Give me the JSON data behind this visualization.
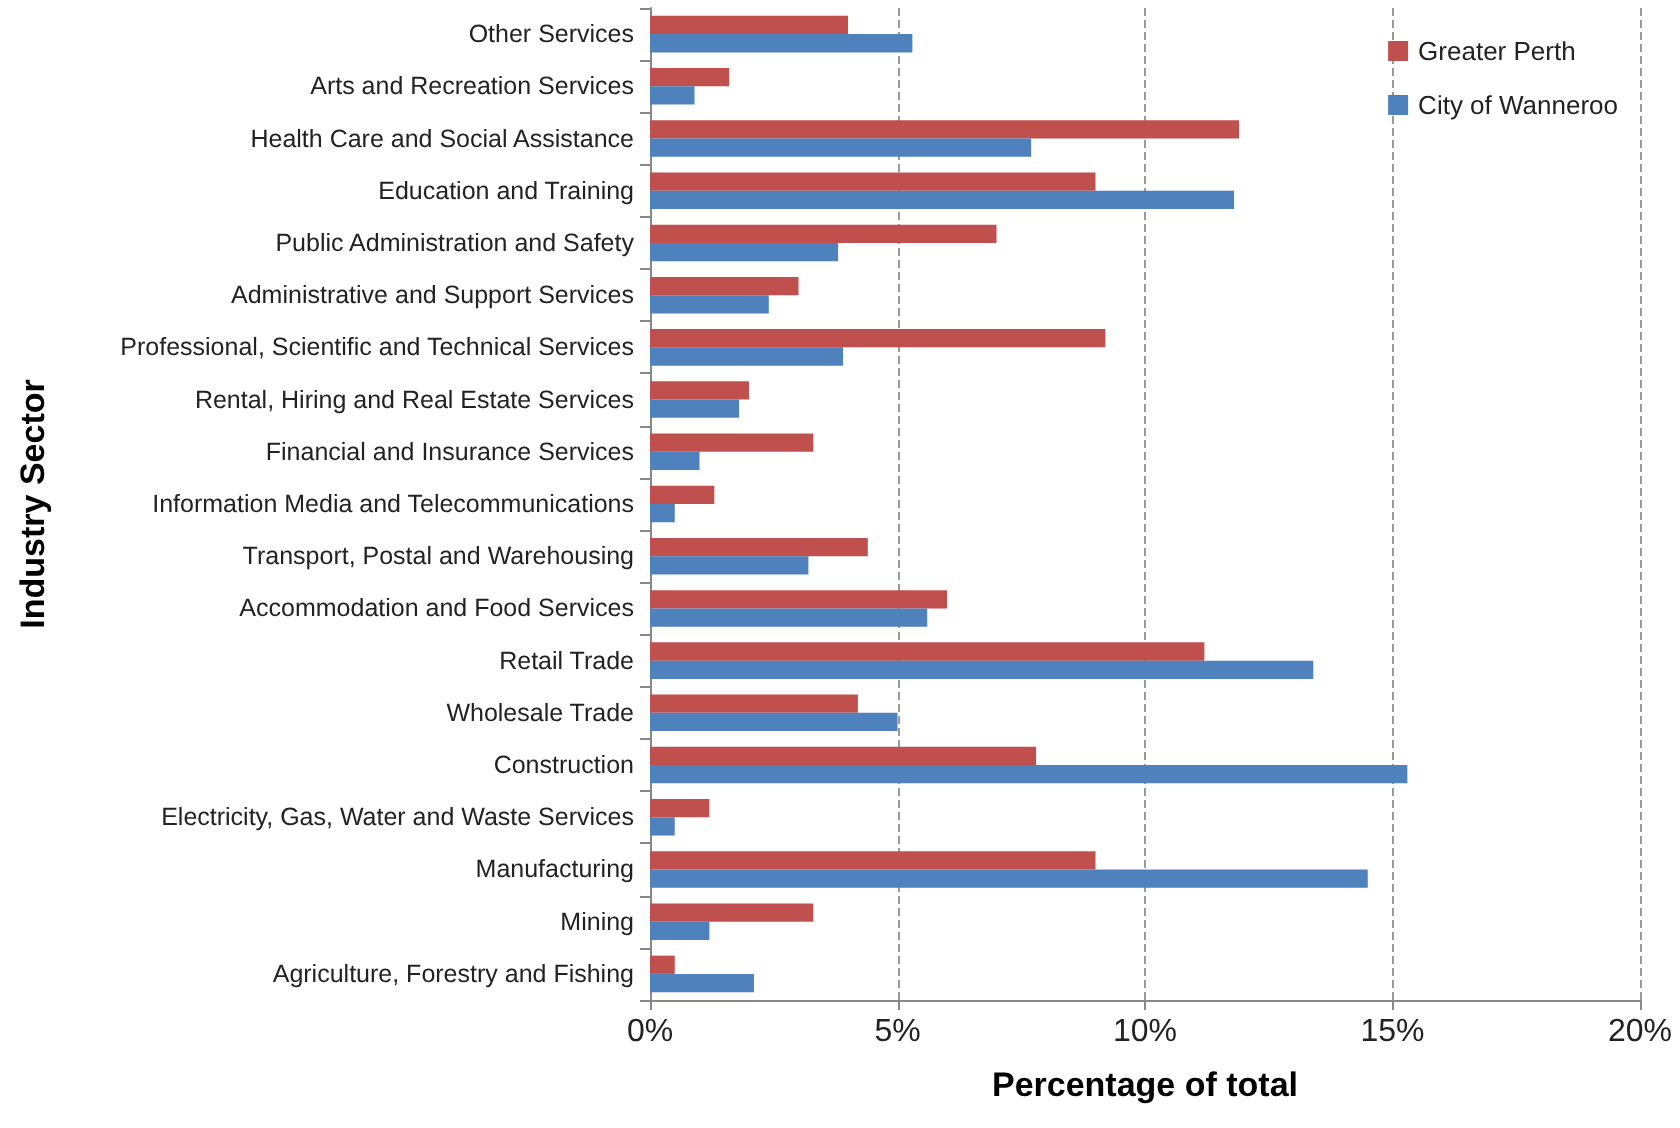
{
  "chart_data": {
    "type": "bar",
    "orientation": "horizontal",
    "xlabel": "Percentage of total",
    "ylabel": "Industry Sector",
    "categories": [
      "Other Services",
      "Arts and Recreation Services",
      "Health Care and Social Assistance",
      "Education and Training",
      "Public Administration and Safety",
      "Administrative and Support Services",
      "Professional, Scientific and Technical Services",
      "Rental, Hiring and Real Estate Services",
      "Financial and Insurance Services",
      "Information Media and Telecommunications",
      "Transport, Postal and Warehousing",
      "Accommodation and Food Services",
      "Retail Trade",
      "Wholesale Trade",
      "Construction",
      "Electricity, Gas, Water and Waste Services",
      "Manufacturing",
      "Mining",
      "Agriculture, Forestry and Fishing"
    ],
    "series": [
      {
        "name": "Greater Perth",
        "color": "#c0504d",
        "values": [
          4.0,
          1.6,
          11.9,
          9.0,
          7.0,
          3.0,
          9.2,
          2.0,
          3.3,
          1.3,
          4.4,
          6.0,
          11.2,
          4.2,
          7.8,
          1.2,
          9.0,
          3.3,
          0.5
        ]
      },
      {
        "name": "City of Wanneroo",
        "color": "#4f81bd",
        "values": [
          5.3,
          0.9,
          7.7,
          11.8,
          3.8,
          2.4,
          3.9,
          1.8,
          1.0,
          0.5,
          3.2,
          5.6,
          13.4,
          5.0,
          15.3,
          0.5,
          14.5,
          1.2,
          2.1
        ]
      }
    ],
    "xlim": [
      0,
      20
    ],
    "xticks": [
      {
        "value": 0,
        "label": "0%"
      },
      {
        "value": 5,
        "label": "5%"
      },
      {
        "value": 10,
        "label": "10%"
      },
      {
        "value": 15,
        "label": "15%"
      },
      {
        "value": 20,
        "label": "20%"
      }
    ],
    "grid": "x",
    "legend": "top right"
  }
}
